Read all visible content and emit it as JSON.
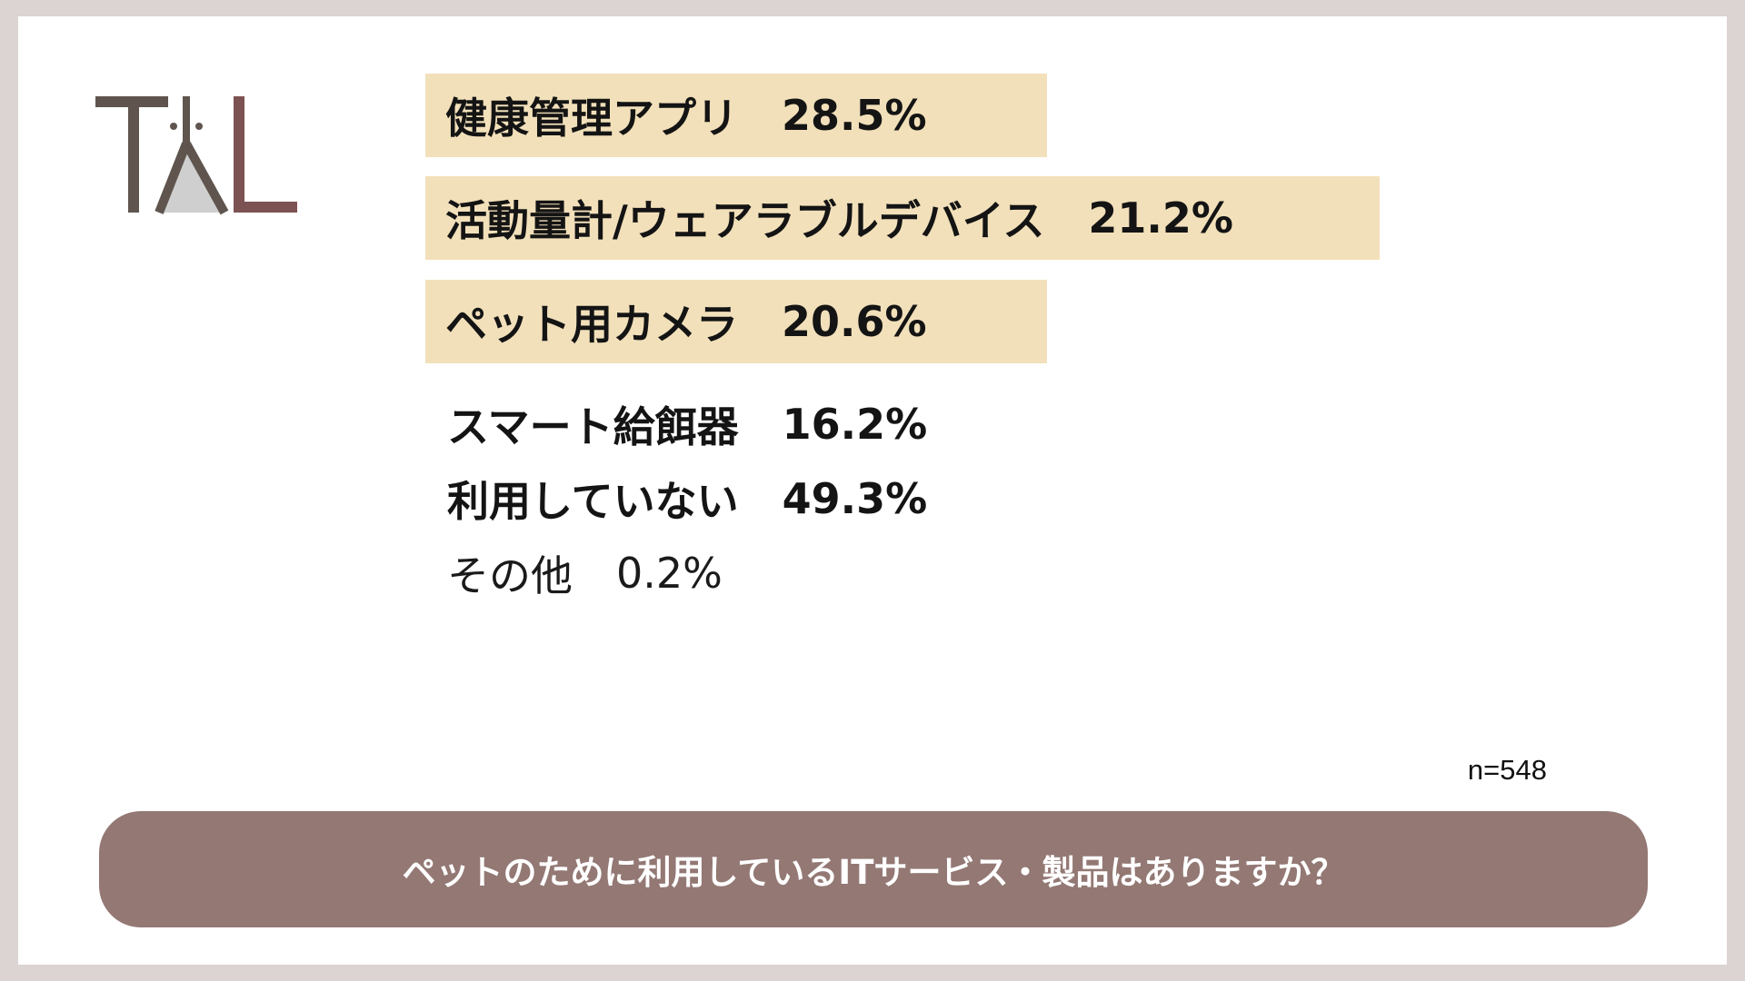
{
  "logo": {
    "name": "TAL",
    "icon": "tal-logo-icon",
    "colors": {
      "dark": "#5f554e",
      "light": "#cfcfcf",
      "accent": "#7d5252"
    }
  },
  "chart_data": {
    "type": "bar",
    "categories": [
      "健康管理アプリ",
      "活動量計/ウェアラブルデバイス",
      "ペット用カメラ",
      "スマート給餌器",
      "利用していない",
      "その他"
    ],
    "values": [
      28.5,
      21.2,
      20.6,
      16.2,
      49.3,
      0.2
    ],
    "value_labels": [
      "28.5%",
      "21.2%",
      "20.6%",
      "16.2%",
      "49.3%",
      "0.2%"
    ],
    "highlighted": [
      true,
      true,
      true,
      false,
      false,
      false
    ],
    "highlight_color": "#f2e0ba",
    "title": "ペットのために利用しているITサービス・製品はありますか？",
    "sample_size": "n=548"
  },
  "footer": {
    "bar_color": "#937874"
  }
}
